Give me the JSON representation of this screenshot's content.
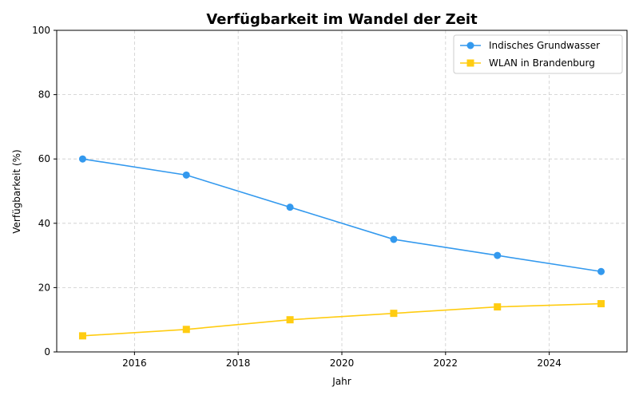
{
  "chart_data": {
    "type": "line",
    "title": "Verfügbarkeit im Wandel der Zeit",
    "xlabel": "Jahr",
    "ylabel": "Verfügbarkeit (%)",
    "x": [
      2015,
      2017,
      2019,
      2021,
      2023,
      2025
    ],
    "xlim": [
      2014.5,
      2025.5
    ],
    "ylim": [
      0,
      100
    ],
    "xticks": [
      2016,
      2018,
      2020,
      2022,
      2024
    ],
    "yticks": [
      0,
      20,
      40,
      60,
      80,
      100
    ],
    "grid": true,
    "legend": "top-right",
    "series": [
      {
        "name": "Indisches Grundwasser",
        "values": [
          60,
          55,
          45,
          35,
          30,
          25
        ],
        "color": "#3399ee",
        "marker": "circle"
      },
      {
        "name": "WLAN in Brandenburg",
        "values": [
          5,
          7,
          10,
          12,
          14,
          15
        ],
        "color": "#ffcc11",
        "marker": "square"
      }
    ]
  }
}
